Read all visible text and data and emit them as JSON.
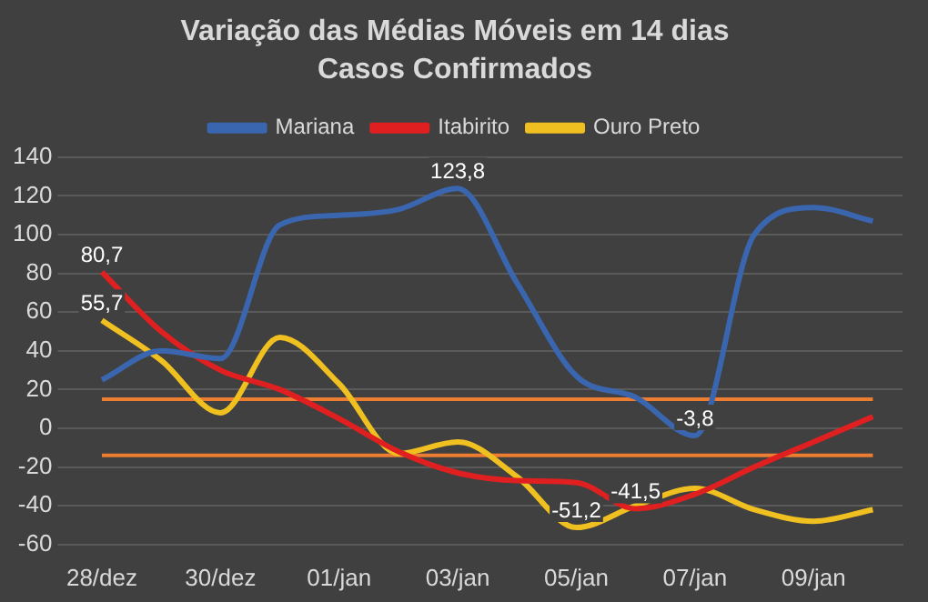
{
  "chart_data": {
    "type": "line",
    "title": "Variação das Médias Móveis em 14 dias",
    "subtitle": "Casos Confirmados",
    "categories": [
      "28/dez",
      null,
      "30/dez",
      null,
      "01/jan",
      null,
      "03/jan",
      null,
      "05/jan",
      null,
      "07/jan",
      null,
      "09/jan",
      null
    ],
    "series": [
      {
        "name": "Mariana",
        "color": "#3a66b0",
        "values": [
          25,
          40,
          36,
          105,
          110,
          113,
          123.8,
          75,
          27,
          16,
          -3.8,
          100,
          114,
          107
        ],
        "value_labels": [
          null,
          null,
          null,
          null,
          null,
          null,
          "123,8",
          null,
          null,
          null,
          "-3,8",
          null,
          null,
          null
        ]
      },
      {
        "name": "Itabirito",
        "color": "#e02020",
        "values": [
          80.7,
          50,
          30,
          20,
          5,
          -12,
          -23,
          -27,
          -28,
          -41.5,
          -34,
          -20,
          -7,
          6
        ],
        "value_labels": [
          "80,7",
          null,
          null,
          null,
          null,
          null,
          null,
          null,
          null,
          "-41,5",
          null,
          null,
          null,
          null
        ]
      },
      {
        "name": "Ouro Preto",
        "color": "#f0c020",
        "values": [
          55.7,
          35,
          8,
          47,
          23,
          -13,
          -7,
          -25,
          -51.2,
          -40,
          -31,
          -42,
          -48,
          -42
        ],
        "value_labels": [
          "55,7",
          null,
          null,
          null,
          null,
          null,
          null,
          null,
          "-51,2",
          null,
          null,
          null,
          null,
          null
        ]
      }
    ],
    "ylim": [
      -60,
      140
    ],
    "yticks": [
      -60,
      -40,
      -20,
      0,
      20,
      40,
      60,
      80,
      100,
      120,
      140
    ],
    "ref_lines": [
      {
        "axis": "y",
        "value": 15,
        "color": "#ed7d31"
      },
      {
        "axis": "y",
        "value": -14,
        "color": "#ed7d31"
      }
    ],
    "grid": "y",
    "legend": "top",
    "marker": "none",
    "line_style": "solid"
  }
}
